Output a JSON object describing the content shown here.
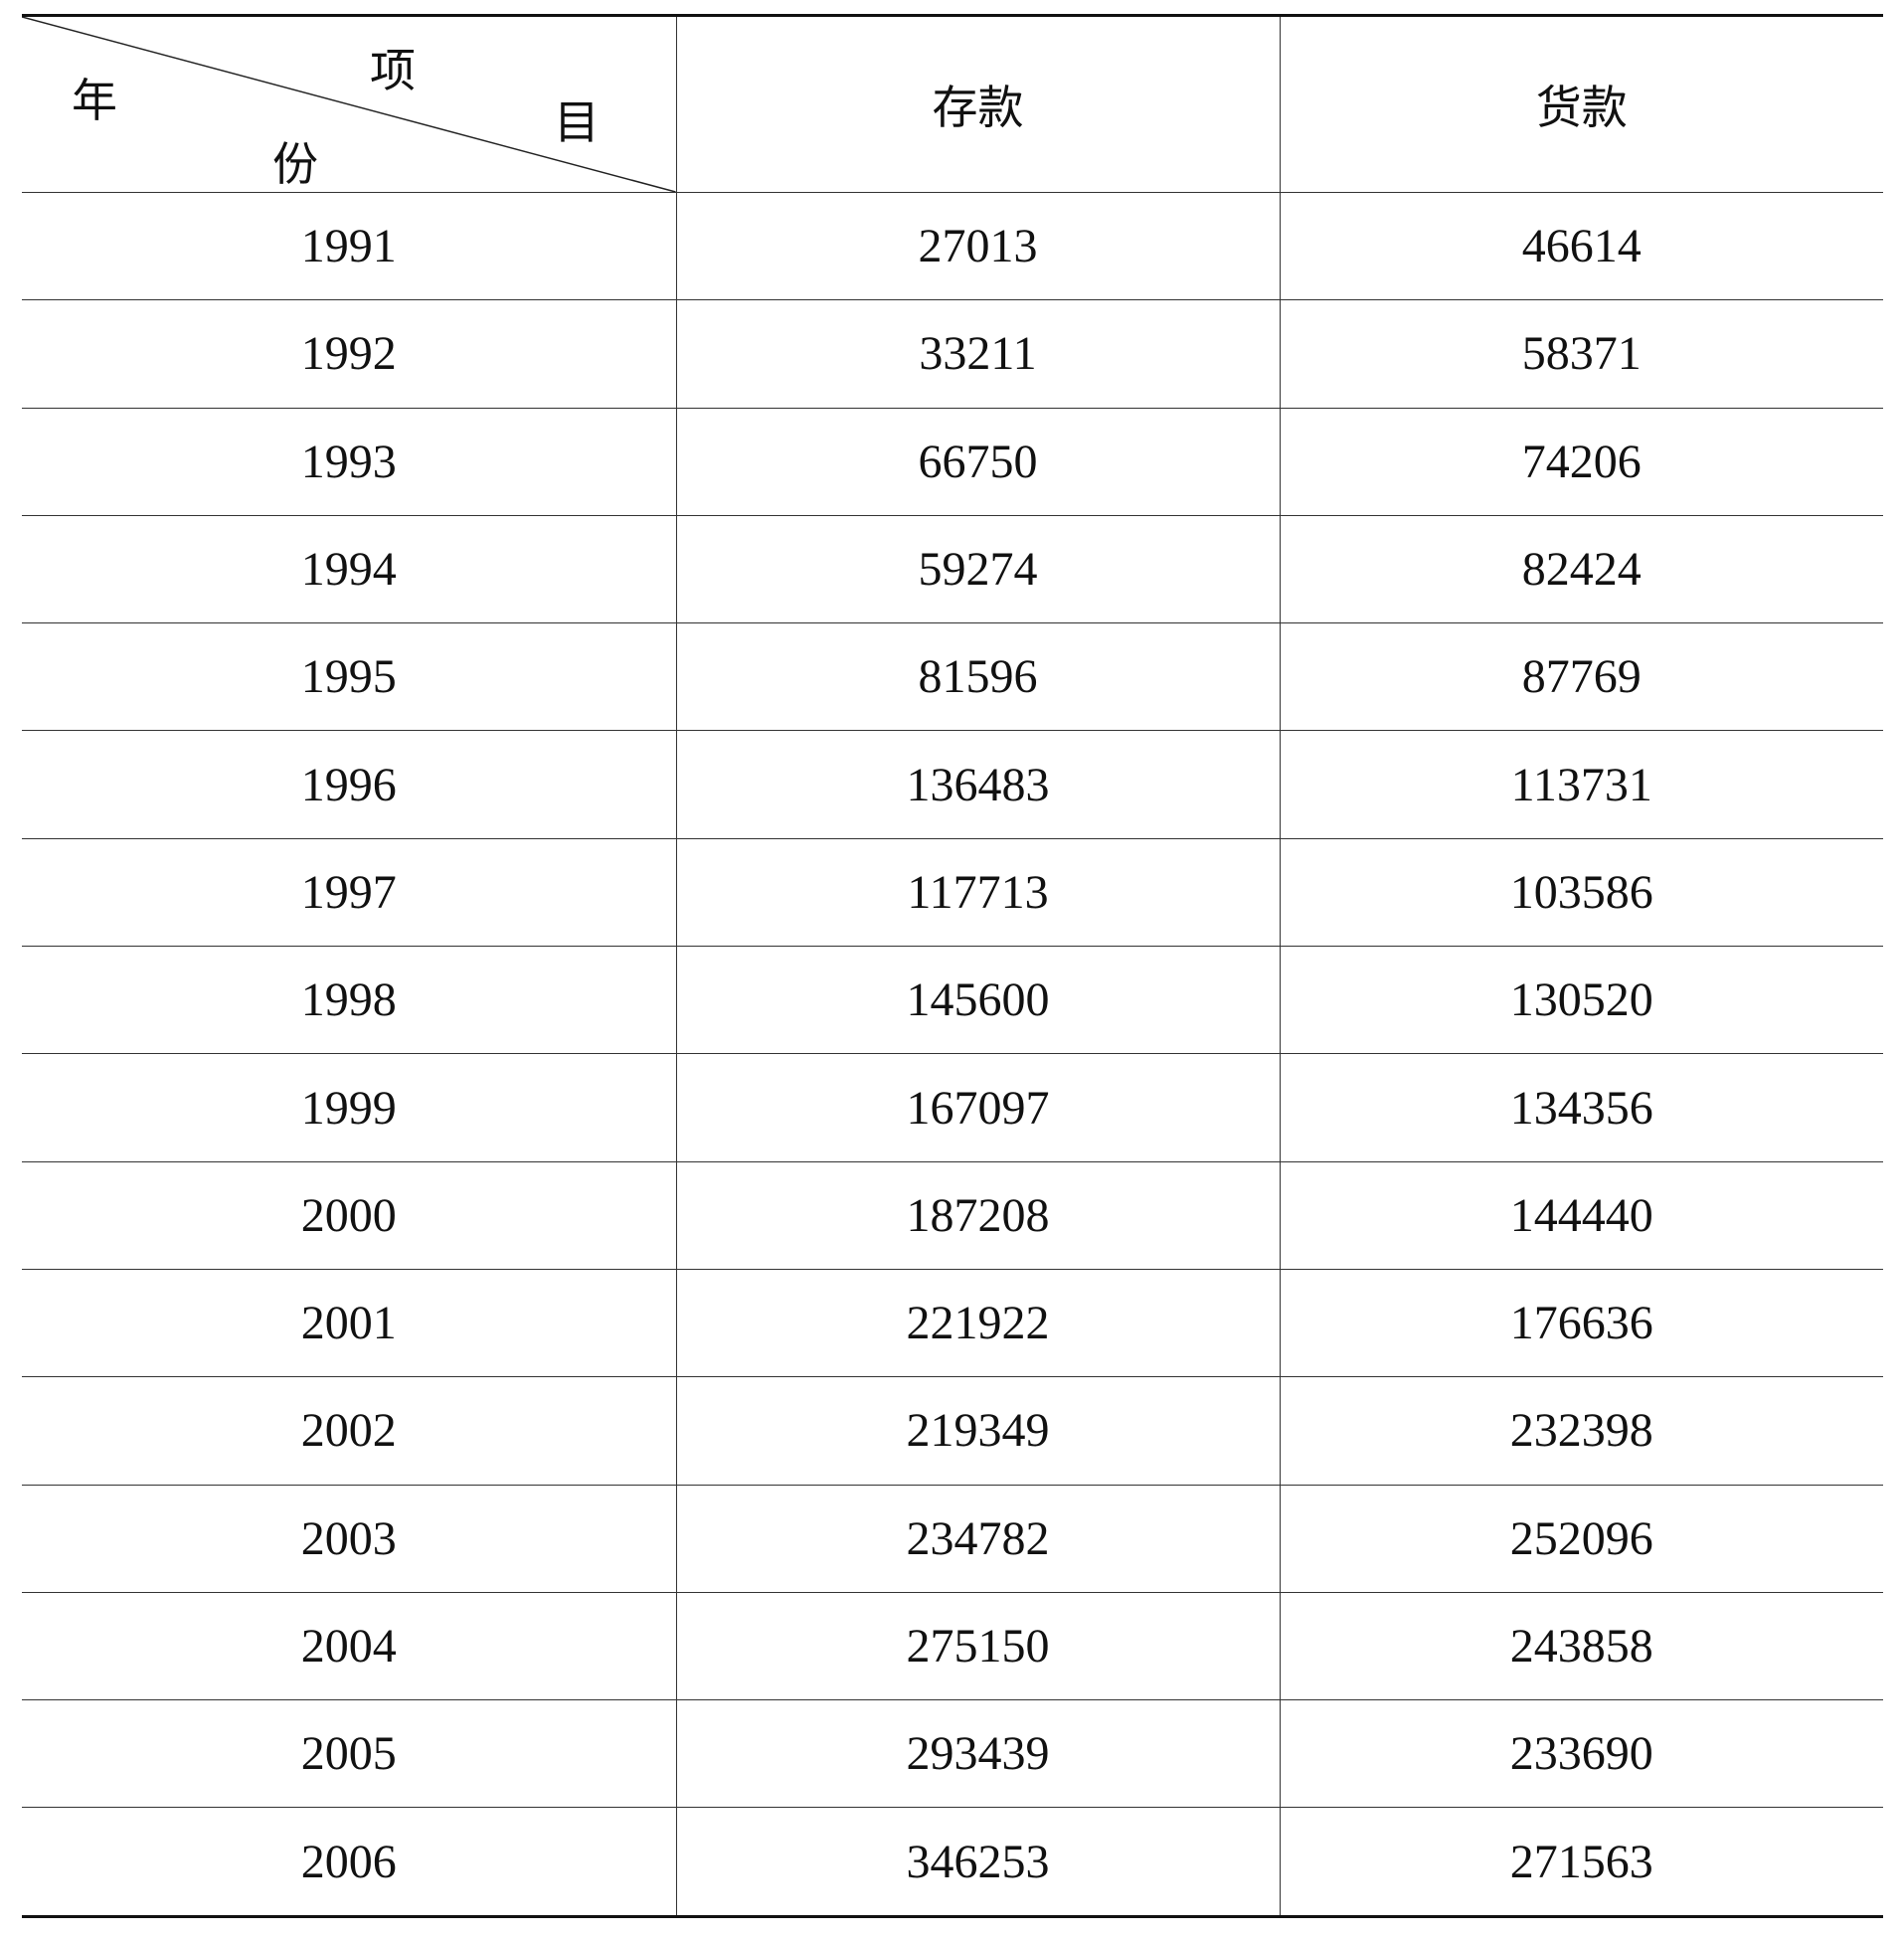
{
  "header": {
    "corner": {
      "item_top": "项",
      "item_bottom": "目",
      "year_top": "年",
      "year_bottom": "份"
    },
    "columns": [
      "存款",
      "货款"
    ]
  },
  "rows": [
    {
      "year": "1991",
      "deposit": "27013",
      "loan": "46614"
    },
    {
      "year": "1992",
      "deposit": "33211",
      "loan": "58371"
    },
    {
      "year": "1993",
      "deposit": "66750",
      "loan": "74206"
    },
    {
      "year": "1994",
      "deposit": "59274",
      "loan": "82424"
    },
    {
      "year": "1995",
      "deposit": "81596",
      "loan": "87769"
    },
    {
      "year": "1996",
      "deposit": "136483",
      "loan": "113731"
    },
    {
      "year": "1997",
      "deposit": "117713",
      "loan": "103586"
    },
    {
      "year": "1998",
      "deposit": "145600",
      "loan": "130520"
    },
    {
      "year": "1999",
      "deposit": "167097",
      "loan": "134356"
    },
    {
      "year": "2000",
      "deposit": "187208",
      "loan": "144440"
    },
    {
      "year": "2001",
      "deposit": "221922",
      "loan": "176636"
    },
    {
      "year": "2002",
      "deposit": "219349",
      "loan": "232398"
    },
    {
      "year": "2003",
      "deposit": "234782",
      "loan": "252096"
    },
    {
      "year": "2004",
      "deposit": "275150",
      "loan": "243858"
    },
    {
      "year": "2005",
      "deposit": "293439",
      "loan": "233690"
    },
    {
      "year": "2006",
      "deposit": "346253",
      "loan": "271563"
    }
  ]
}
